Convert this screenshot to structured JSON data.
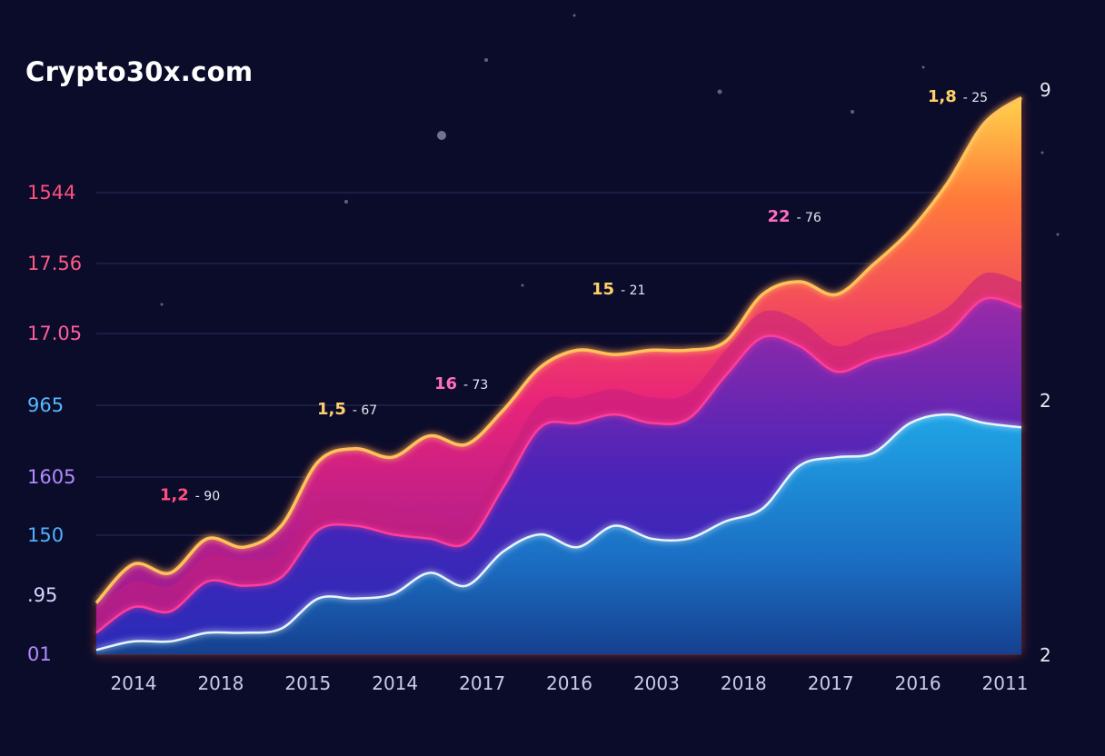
{
  "brand": {
    "text": "Crypto30x.com"
  },
  "colors": {
    "background": "#0b0c2a",
    "gridline": "#3b4f86",
    "layer_top": "#ff7a3a",
    "layer_mid": "#e8237a",
    "layer_base": "#2a2bb8",
    "layer_bottom": "#1b77c9",
    "line_pink": "#ff3d9a",
    "line_white": "#e6f6ff"
  },
  "chart_data": {
    "type": "area",
    "title": "",
    "xlabel": "",
    "ylabel": "",
    "categories": [
      "2014",
      "2018",
      "2015",
      "2014",
      "2017",
      "2016",
      "2003",
      "2018",
      "2017",
      "2016",
      "2011"
    ],
    "left_tick_labels": [
      {
        "label": "1544",
        "color": "#ff4f7e"
      },
      {
        "label": "17.56",
        "color": "#ff5a86"
      },
      {
        "label": "17.05",
        "color": "#ff5c9a"
      },
      {
        "label": "965",
        "color": "#55b8ff"
      },
      {
        "label": "1605",
        "color": "#b18bff"
      },
      {
        "label": "150",
        "color": "#4fb0ff"
      },
      {
        "label": ".95",
        "color": "#d8d4ff"
      },
      {
        "label": "01",
        "color": "#b38bff"
      }
    ],
    "right_tick_labels": [
      "9",
      "2",
      "2"
    ],
    "y_range": [
      0,
      100
    ],
    "grid": true,
    "series": [
      {
        "x": [
          0,
          4,
          8,
          12,
          16,
          20,
          24,
          28,
          32,
          36,
          40,
          44,
          48,
          52,
          56,
          60,
          64,
          68,
          72,
          76,
          80,
          84,
          88,
          92,
          96,
          100
        ],
        "values": [
          12,
          21,
          19,
          27,
          25,
          30,
          45,
          48,
          46,
          51,
          49,
          57,
          67,
          71,
          70,
          71,
          71,
          73,
          84,
          87,
          84,
          91,
          99,
          110,
          124,
          130
        ]
      },
      {
        "x": [
          0,
          4,
          8,
          12,
          16,
          20,
          24,
          28,
          32,
          36,
          40,
          44,
          48,
          52,
          56,
          60,
          64,
          68,
          72,
          76,
          80,
          84,
          88,
          92,
          96,
          100
        ],
        "values": [
          5,
          11,
          10,
          17,
          16,
          18,
          29,
          30,
          28,
          27,
          26,
          39,
          53,
          54,
          56,
          54,
          55,
          65,
          74,
          72,
          66,
          69,
          71,
          75,
          83,
          81
        ]
      },
      {
        "x": [
          0,
          4,
          8,
          12,
          16,
          20,
          24,
          28,
          32,
          36,
          40,
          44,
          48,
          52,
          56,
          60,
          64,
          68,
          72,
          76,
          80,
          84,
          88,
          92,
          96,
          100
        ],
        "values": [
          1,
          3,
          3,
          5,
          5,
          6,
          13,
          13,
          14,
          19,
          16,
          24,
          28,
          25,
          30,
          27,
          27,
          31,
          34,
          44,
          46,
          47,
          54,
          56,
          54,
          53
        ]
      }
    ],
    "annotations": [
      {
        "x": 10,
        "y": 36,
        "label": "1,2",
        "suffix": "- 90",
        "color": "#ff4f7e"
      },
      {
        "x": 27,
        "y": 56,
        "label": "1,5",
        "suffix": "- 67",
        "color": "#ffcf6e"
      },
      {
        "x": 39,
        "y": 62,
        "label": "16",
        "suffix": "- 73",
        "color": "#ff6dc2"
      },
      {
        "x": 56,
        "y": 84,
        "label": "15",
        "suffix": "- 21",
        "color": "#ffd166"
      },
      {
        "x": 75,
        "y": 101,
        "label": "22",
        "suffix": "- 76",
        "color": "#ff6dc2"
      },
      {
        "x": 93,
        "y": 129,
        "label": "1,8",
        "suffix": "- 25",
        "color": "#ffd166"
      }
    ]
  }
}
